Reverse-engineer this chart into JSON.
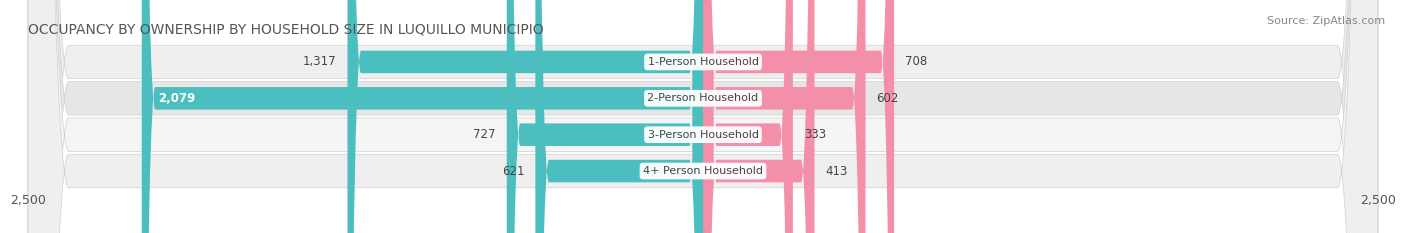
{
  "title": "OCCUPANCY BY OWNERSHIP BY HOUSEHOLD SIZE IN LUQUILLO MUNICIPIO",
  "source": "Source: ZipAtlas.com",
  "categories": [
    "1-Person Household",
    "2-Person Household",
    "3-Person Household",
    "4+ Person Household"
  ],
  "owner_values": [
    1317,
    2079,
    727,
    621
  ],
  "renter_values": [
    708,
    602,
    333,
    413
  ],
  "owner_color": "#4bbfbf",
  "renter_color": "#f48faa",
  "row_bg_colors": [
    "#f0f0f0",
    "#e8e8e8",
    "#f5f5f5",
    "#f0f0f0"
  ],
  "row_border_color": "#cccccc",
  "xmax": 2500,
  "title_fontsize": 10,
  "source_fontsize": 8,
  "bar_label_fontsize": 8.5,
  "cat_label_fontsize": 8,
  "axis_label_fontsize": 9,
  "legend_fontsize": 8.5,
  "background_color": "#ffffff"
}
